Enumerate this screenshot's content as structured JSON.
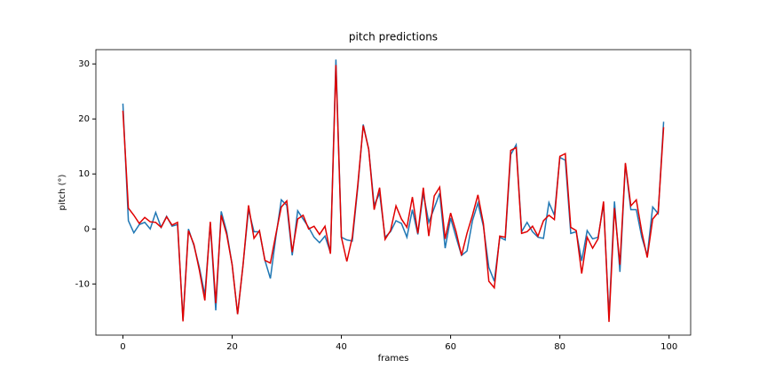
{
  "chart_data": {
    "type": "line",
    "title": "pitch predictions",
    "x_label": "frames",
    "y_label": "pitch (°)",
    "x": [
      0,
      1,
      2,
      3,
      4,
      5,
      6,
      7,
      8,
      9,
      10,
      11,
      12,
      13,
      14,
      15,
      16,
      17,
      18,
      19,
      20,
      21,
      22,
      23,
      24,
      25,
      26,
      27,
      28,
      29,
      30,
      31,
      32,
      33,
      34,
      35,
      36,
      37,
      38,
      39,
      40,
      41,
      42,
      43,
      44,
      45,
      46,
      47,
      48,
      49,
      50,
      51,
      52,
      53,
      54,
      55,
      56,
      57,
      58,
      59,
      60,
      61,
      62,
      63,
      64,
      65,
      66,
      67,
      68,
      69,
      70,
      71,
      72,
      73,
      74,
      75,
      76,
      77,
      78,
      79,
      80,
      81,
      82,
      83,
      84,
      85,
      86,
      87,
      88,
      89,
      90,
      91,
      92,
      93,
      94,
      95,
      96,
      97,
      98,
      99
    ],
    "series": [
      {
        "color": "#1f77b4",
        "values": [
          22.8,
          1.5,
          -0.7,
          0.8,
          1.2,
          0,
          3.0,
          0.3,
          2.3,
          0.5,
          0.8,
          -16.5,
          0,
          -3,
          -7,
          -12,
          1,
          -14.8,
          3.2,
          -0.5,
          -6.5,
          -15.5,
          -6.5,
          3.5,
          -0.5,
          -0.5,
          -5.7,
          -9,
          -1.5,
          5.3,
          4.3,
          -4.8,
          3.3,
          1.8,
          0.3,
          -1.5,
          -2.5,
          -1.3,
          -4.3,
          30.8,
          -1.5,
          -2,
          -2.2,
          7.5,
          19,
          14.5,
          4.3,
          6.5,
          -1.5,
          -0.5,
          1.5,
          1,
          -1.5,
          3.5,
          -1,
          6.5,
          1.2,
          3.8,
          6.5,
          -3.5,
          2,
          -1.5,
          -4.8,
          -4,
          1.5,
          4.7,
          0.5,
          -7,
          -9.5,
          -1.5,
          -2,
          13.5,
          15.3,
          -0.5,
          1.2,
          -0.5,
          -1.5,
          -1.7,
          4.8,
          2.5,
          13,
          12.5,
          -0.8,
          -0.5,
          -5.8,
          -0.3,
          -1.8,
          -1.5,
          4.5,
          -16,
          5,
          -7.8,
          11.8,
          3.5,
          3.5,
          -1.5,
          -4.8,
          4,
          2.8,
          19.5
        ]
      },
      {
        "color": "#e00000",
        "values": [
          21.5,
          3.8,
          2.5,
          1.0,
          2.1,
          1.3,
          1.2,
          0.3,
          2.2,
          0.7,
          1.2,
          -16.8,
          -0.3,
          -2.8,
          -7.5,
          -13,
          1.3,
          -13.5,
          2.5,
          -1,
          -6.5,
          -15.5,
          -6.5,
          4.3,
          -1.7,
          -0.3,
          -5.7,
          -6.2,
          -1,
          4,
          5.1,
          -4.2,
          1.8,
          2.5,
          0,
          0.5,
          -1,
          0.5,
          -4.5,
          29.8,
          -1.5,
          -5.9,
          -1.5,
          8,
          18.8,
          14.5,
          3.5,
          7.5,
          -1.9,
          -0.3,
          4.2,
          1.8,
          0.3,
          5.8,
          -0.8,
          7.5,
          -1.3,
          6.0,
          7.6,
          -1.8,
          2.9,
          -0.5,
          -4.8,
          -0.8,
          2.5,
          6.2,
          1,
          -9.5,
          -10.7,
          -1.3,
          -1.5,
          14.3,
          14.8,
          -0.8,
          -0.5,
          0.5,
          -1.3,
          1.5,
          2.5,
          1.7,
          13.2,
          13.7,
          0.3,
          -0.3,
          -8.1,
          -1.5,
          -3.5,
          -1.8,
          5,
          -16.9,
          3.8,
          -6.5,
          12,
          4.2,
          5.3,
          -0.5,
          -5.2,
          1.8,
          3,
          18.5
        ]
      }
    ],
    "xlim": [
      -4.95,
      103.95
    ],
    "ylim": [
      -19.3,
      32.6
    ],
    "xticks": [
      0,
      20,
      40,
      60,
      80,
      100
    ],
    "yticks": [
      -10,
      0,
      10,
      20,
      30
    ]
  }
}
